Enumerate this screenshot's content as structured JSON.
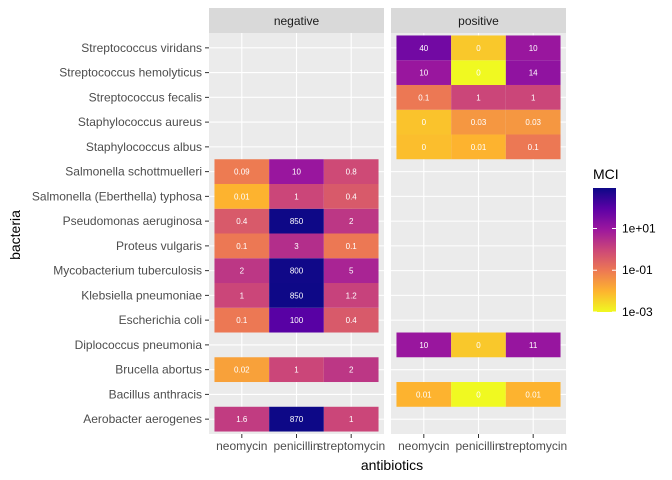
{
  "chart_data": {
    "type": "heatmap",
    "xlabel": "antibiotics",
    "ylabel": "bacteria",
    "facets": [
      "negative",
      "positive"
    ],
    "antibiotics": [
      "neomycin",
      "penicillin",
      "streptomycin"
    ],
    "bacteria_top_to_bottom": [
      "Streptococcus viridans",
      "Streptococcus hemolyticus",
      "Streptococcus fecalis",
      "Staphylococcus aureus",
      "Staphylococcus albus",
      "Salmonella schottmuelleri",
      "Salmonella (Eberthella) typhosa",
      "Pseudomonas aeruginosa",
      "Proteus vulgaris",
      "Mycobacterium tuberculosis",
      "Klebsiella pneumoniae",
      "Escherichia coli",
      "Diplococcus pneumonia",
      "Brucella abortus",
      "Bacillus anthracis",
      "Aerobacter aerogenes"
    ],
    "cells": [
      {
        "bacteria": "Aerobacter aerogenes",
        "gram": "negative",
        "values": [
          1.6,
          870,
          1
        ]
      },
      {
        "bacteria": "Brucella abortus",
        "gram": "negative",
        "values": [
          0.02,
          1,
          2
        ]
      },
      {
        "bacteria": "Escherichia coli",
        "gram": "negative",
        "values": [
          0.1,
          100,
          0.4
        ]
      },
      {
        "bacteria": "Klebsiella pneumoniae",
        "gram": "negative",
        "values": [
          1,
          850,
          1.2
        ]
      },
      {
        "bacteria": "Mycobacterium tuberculosis",
        "gram": "negative",
        "values": [
          2,
          800,
          5
        ]
      },
      {
        "bacteria": "Proteus vulgaris",
        "gram": "negative",
        "values": [
          0.1,
          3,
          0.1
        ]
      },
      {
        "bacteria": "Pseudomonas aeruginosa",
        "gram": "negative",
        "values": [
          0.4,
          850,
          2
        ]
      },
      {
        "bacteria": "Salmonella (Eberthella) typhosa",
        "gram": "negative",
        "values": [
          0.01,
          1,
          0.4
        ]
      },
      {
        "bacteria": "Salmonella schottmuelleri",
        "gram": "negative",
        "values": [
          0.09,
          10,
          0.8
        ]
      },
      {
        "bacteria": "Bacillus anthracis",
        "gram": "positive",
        "values": [
          0.01,
          0.001,
          0.01
        ]
      },
      {
        "bacteria": "Diplococcus pneumonia",
        "gram": "positive",
        "values": [
          10,
          0.005,
          11
        ]
      },
      {
        "bacteria": "Staphylococcus albus",
        "gram": "positive",
        "values": [
          0.007,
          0.01,
          0.1
        ]
      },
      {
        "bacteria": "Staphylococcus aureus",
        "gram": "positive",
        "values": [
          0.006,
          0.03,
          0.03
        ]
      },
      {
        "bacteria": "Streptococcus fecalis",
        "gram": "positive",
        "values": [
          0.1,
          1,
          1
        ]
      },
      {
        "bacteria": "Streptococcus hemolyticus",
        "gram": "positive",
        "values": [
          10,
          0.001,
          14
        ]
      },
      {
        "bacteria": "Streptococcus viridans",
        "gram": "positive",
        "values": [
          40,
          0.005,
          10
        ]
      }
    ],
    "color_scale": {
      "name": "plasma",
      "transform": "log10",
      "limits": [
        0.001,
        870
      ],
      "colors": [
        "#f0f921",
        "#fdb42f",
        "#ed7953",
        "#cc4778",
        "#9c179e",
        "#5c01a6",
        "#0d0887"
      ]
    },
    "legend": {
      "title": "MCI",
      "position": "right",
      "breaks": [
        0.001,
        0.1,
        10
      ],
      "labels": [
        "1e-03",
        "1e-01",
        "1e+01"
      ]
    },
    "panel_background": "#ebebeb",
    "strip_background": "#d9d9d9",
    "grid": true
  }
}
